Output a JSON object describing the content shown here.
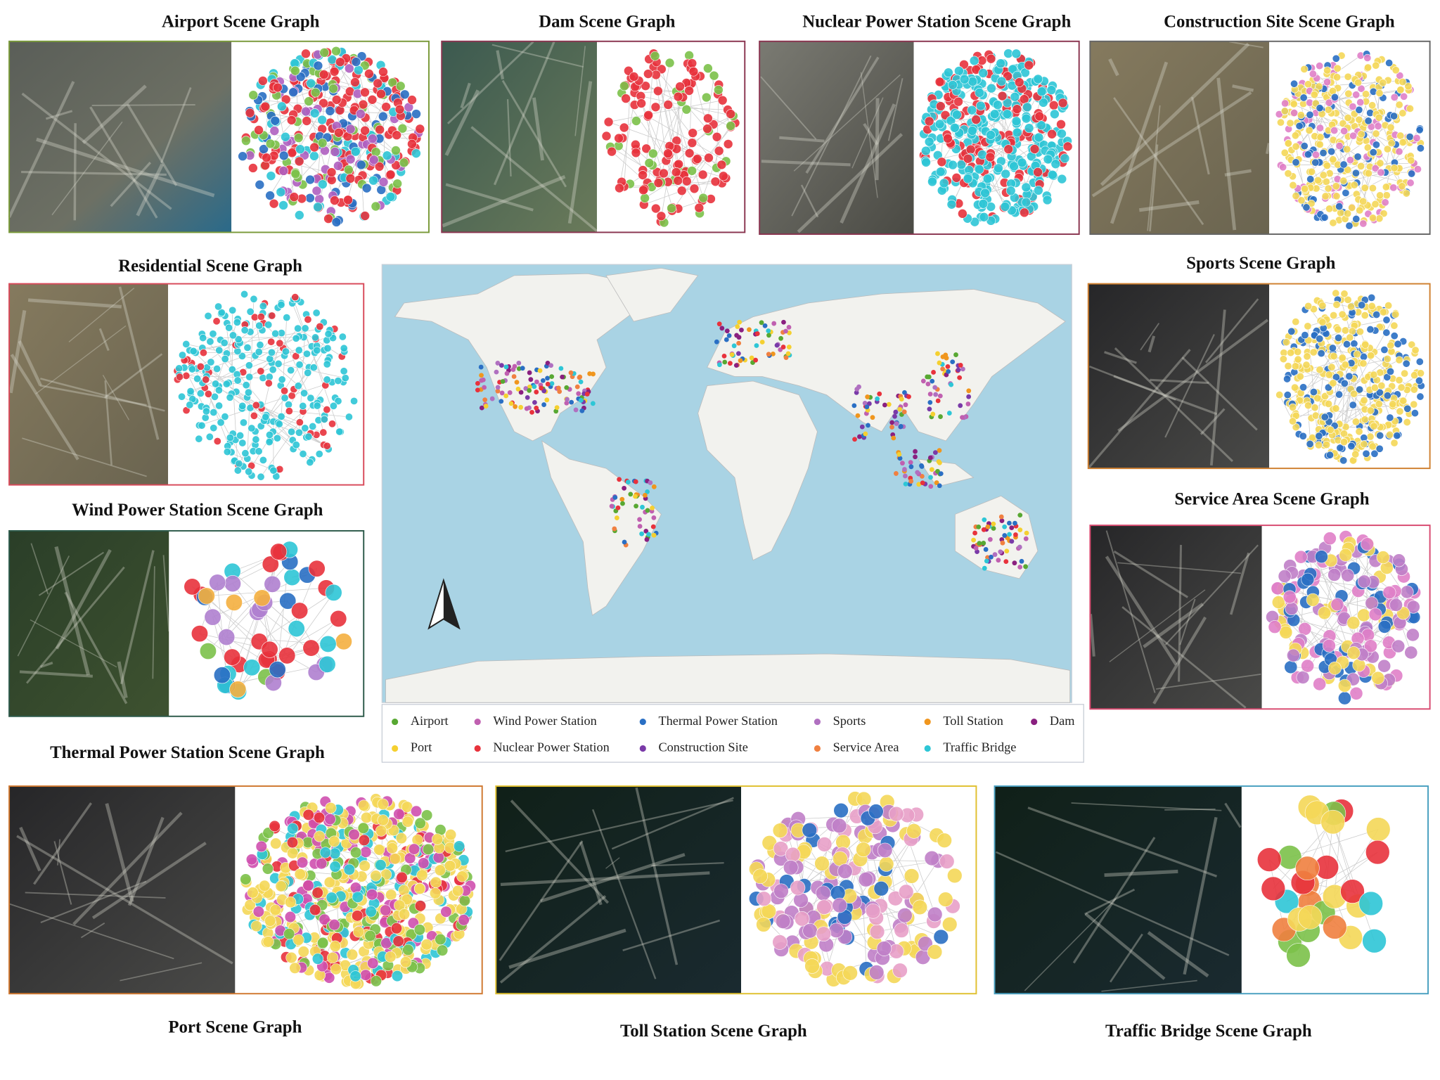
{
  "panels": [
    {
      "title": "Airport Scene Graph",
      "border": "#7a9a3a",
      "nodes": [
        "#e8323c",
        "#e8323c",
        "#e8323c",
        "#7cc24a",
        "#2a6fc4",
        "#2ec6d6",
        "#b060c0"
      ]
    },
    {
      "title": "Dam Scene Graph",
      "border": "#8a3550",
      "nodes": [
        "#e8323c",
        "#e8323c",
        "#e8323c",
        "#e8323c",
        "#7cc24a"
      ]
    },
    {
      "title": "Nuclear Power Station Scene Graph",
      "border": "#8a3550",
      "nodes": [
        "#2ec6d6",
        "#2ec6d6",
        "#e8323c"
      ]
    },
    {
      "title": "Construction Site Scene Graph",
      "border": "#666666",
      "nodes": [
        "#f5d858",
        "#f5d858",
        "#f5d858",
        "#e080c8",
        "#2a6fc4"
      ]
    },
    {
      "title": "Residential Scene Graph",
      "border": "#d84a5a",
      "nodes": [
        "#2ec6d6",
        "#2ec6d6",
        "#2ec6d6",
        "#2ec6d6",
        "#e8323c"
      ]
    },
    {
      "title": "Wind Power Station Scene Graph",
      "border": "#2d5a4a",
      "nodes": [
        "#e8323c",
        "#e8323c",
        "#e8323c",
        "#7cc24a",
        "#2ec6d6",
        "#f5b040",
        "#2a6fc4",
        "#b080d0"
      ]
    },
    {
      "title": "Sports Scene Graph",
      "border": "#d08030",
      "nodes": [
        "#f5d858",
        "#f5d858",
        "#2a6fc4"
      ]
    },
    {
      "title": "Service Area Scene Graph",
      "border": "#d84a70",
      "nodes": [
        "#c080c8",
        "#f5d858",
        "#2a6fc4",
        "#e080c8"
      ]
    },
    {
      "title": "Port Scene Graph",
      "border": "#d07830",
      "nodes": [
        "#f5d858",
        "#f5d858",
        "#f5d858",
        "#e8323c",
        "#d050b0",
        "#2ec6d6",
        "#7cc24a"
      ]
    },
    {
      "title": "Toll Station Scene Graph",
      "border": "#e0c030",
      "nodes": [
        "#f5d858",
        "#f5d858",
        "#c080c8",
        "#c080c8",
        "#2a6fc4",
        "#e8a0c8"
      ]
    },
    {
      "title": "Traffic Bridge Scene Graph",
      "border": "#4aa0c0",
      "nodes": [
        "#f5d858",
        "#e8323c",
        "#7cc24a",
        "#2ec6d6",
        "#f08040"
      ]
    }
  ],
  "extra_title": "Thermal Power Station Scene Graph",
  "legend": [
    {
      "label": "Airport",
      "color": "#58a832"
    },
    {
      "label": "Wind Power Station",
      "color": "#c060b0"
    },
    {
      "label": "Thermal Power Station",
      "color": "#2a6fc4"
    },
    {
      "label": "Sports",
      "color": "#b070c0"
    },
    {
      "label": "Toll Station",
      "color": "#f0961e"
    },
    {
      "label": "Dam",
      "color": "#8a2080"
    },
    {
      "label": "Port",
      "color": "#f5d030"
    },
    {
      "label": "Nuclear Power Station",
      "color": "#e8323c"
    },
    {
      "label": "Construction Site",
      "color": "#7a3aa8"
    },
    {
      "label": "Service Area",
      "color": "#f08040"
    },
    {
      "label": "Traffic Bridge",
      "color": "#2ec6d6"
    }
  ]
}
